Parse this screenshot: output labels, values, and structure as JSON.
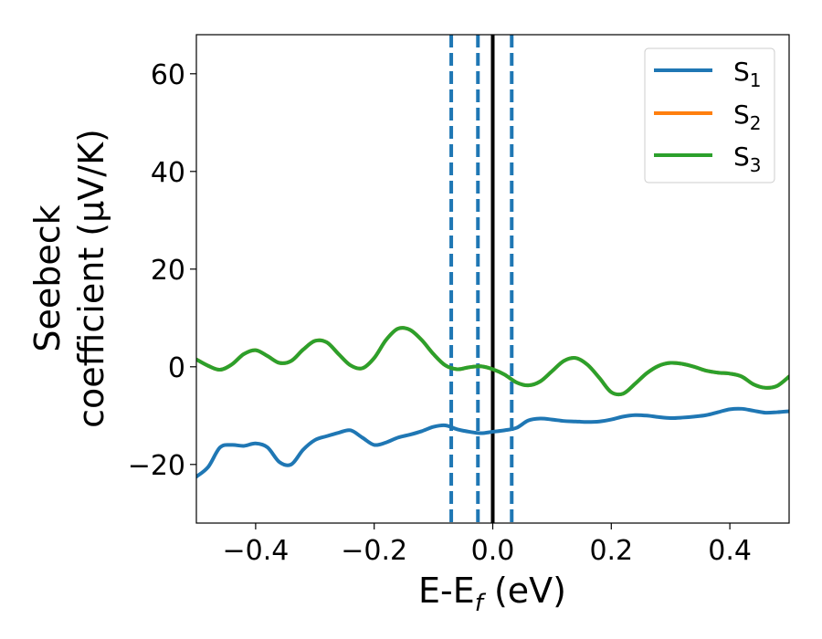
{
  "chart_data": {
    "type": "line",
    "xlabel": "E-E",
    "xlabel_sub": "f",
    "xlabel_unit": " (eV)",
    "ylabel_line1": "Seebeck",
    "ylabel_line2": "coefficient  (μV/K)",
    "xlim": [
      -0.5,
      0.5
    ],
    "ylim": [
      -32,
      68
    ],
    "xticks": [
      -0.4,
      -0.2,
      0.0,
      0.2,
      0.4
    ],
    "xtick_labels": [
      "−0.4",
      "−0.2",
      "0.0",
      "0.2",
      "0.4"
    ],
    "yticks": [
      -20,
      0,
      20,
      40,
      60
    ],
    "ytick_labels": [
      "−20",
      "0",
      "20",
      "40",
      "60"
    ],
    "grid": false,
    "legend_position": "top-right",
    "series": [
      {
        "name": "S",
        "name_sub": "1",
        "color": "#1f77b4",
        "x": [
          -0.5,
          -0.48,
          -0.46,
          -0.44,
          -0.42,
          -0.4,
          -0.38,
          -0.36,
          -0.34,
          -0.32,
          -0.3,
          -0.28,
          -0.26,
          -0.24,
          -0.22,
          -0.2,
          -0.18,
          -0.16,
          -0.14,
          -0.12,
          -0.1,
          -0.08,
          -0.06,
          -0.04,
          -0.02,
          0.0,
          0.02,
          0.04,
          0.06,
          0.08,
          0.1,
          0.12,
          0.14,
          0.16,
          0.18,
          0.2,
          0.22,
          0.24,
          0.26,
          0.28,
          0.3,
          0.32,
          0.34,
          0.36,
          0.38,
          0.4,
          0.42,
          0.44,
          0.46,
          0.48,
          0.5
        ],
        "y": [
          -22.5,
          -20.5,
          -16.5,
          -16.0,
          -16.2,
          -15.7,
          -16.5,
          -19.5,
          -20.0,
          -17.0,
          -15.0,
          -14.2,
          -13.5,
          -13.0,
          -14.5,
          -16.0,
          -15.5,
          -14.5,
          -13.9,
          -13.2,
          -12.3,
          -12.0,
          -12.8,
          -13.3,
          -13.6,
          -13.3,
          -13.0,
          -12.5,
          -11.0,
          -10.6,
          -10.8,
          -11.1,
          -11.2,
          -11.3,
          -11.2,
          -10.8,
          -10.2,
          -9.9,
          -10.0,
          -10.3,
          -10.5,
          -10.4,
          -10.2,
          -9.9,
          -9.3,
          -8.7,
          -8.6,
          -9.0,
          -9.4,
          -9.3,
          -9.1
        ]
      },
      {
        "name": "S",
        "name_sub": "2",
        "color": "#ff7f0e",
        "x": [
          -0.5,
          -0.48,
          -0.46,
          -0.44,
          -0.42,
          -0.4,
          -0.38,
          -0.36,
          -0.34,
          -0.32,
          -0.3,
          -0.28,
          -0.26,
          -0.24,
          -0.22,
          -0.2,
          -0.18,
          -0.16,
          -0.14,
          -0.12,
          -0.1,
          -0.08,
          -0.06,
          -0.04,
          -0.02,
          0.0,
          0.02,
          0.04,
          0.06,
          0.08,
          0.1,
          0.12,
          0.14,
          0.16,
          0.18,
          0.2,
          0.22,
          0.24,
          0.26,
          0.28,
          0.3,
          0.32,
          0.34,
          0.36,
          0.38,
          0.4,
          0.42,
          0.44,
          0.46,
          0.48,
          0.5
        ],
        "y": [
          1.5,
          0.2,
          -0.6,
          0.5,
          2.6,
          3.4,
          2.2,
          0.8,
          1.2,
          3.5,
          5.3,
          5.0,
          2.6,
          0.3,
          -0.3,
          1.8,
          5.5,
          7.8,
          7.6,
          5.5,
          2.6,
          0.3,
          -0.5,
          -0.1,
          0.1,
          -0.5,
          -1.6,
          -3.2,
          -3.8,
          -3.0,
          -0.9,
          1.2,
          1.8,
          0.4,
          -2.3,
          -5.2,
          -5.5,
          -3.5,
          -1.3,
          0.2,
          0.8,
          0.6,
          0.0,
          -0.8,
          -1.2,
          -1.4,
          -2.0,
          -3.6,
          -4.3,
          -3.9,
          -2.0
        ]
      },
      {
        "name": "S",
        "name_sub": "3",
        "color": "#2ca02c",
        "x": [
          -0.5,
          -0.48,
          -0.46,
          -0.44,
          -0.42,
          -0.4,
          -0.38,
          -0.36,
          -0.34,
          -0.32,
          -0.3,
          -0.28,
          -0.26,
          -0.24,
          -0.22,
          -0.2,
          -0.18,
          -0.16,
          -0.14,
          -0.12,
          -0.1,
          -0.08,
          -0.06,
          -0.04,
          -0.02,
          0.0,
          0.02,
          0.04,
          0.06,
          0.08,
          0.1,
          0.12,
          0.14,
          0.16,
          0.18,
          0.2,
          0.22,
          0.24,
          0.26,
          0.28,
          0.3,
          0.32,
          0.34,
          0.36,
          0.38,
          0.4,
          0.42,
          0.44,
          0.46,
          0.48,
          0.5
        ],
        "y": [
          1.5,
          0.2,
          -0.6,
          0.5,
          2.6,
          3.4,
          2.2,
          0.8,
          1.2,
          3.5,
          5.3,
          5.0,
          2.6,
          0.3,
          -0.3,
          1.8,
          5.5,
          7.8,
          7.6,
          5.5,
          2.6,
          0.3,
          -0.5,
          -0.1,
          0.1,
          -0.5,
          -1.6,
          -3.2,
          -3.8,
          -3.0,
          -0.9,
          1.2,
          1.8,
          0.4,
          -2.3,
          -5.2,
          -5.5,
          -3.5,
          -1.3,
          0.2,
          0.8,
          0.6,
          0.0,
          -0.8,
          -1.2,
          -1.4,
          -2.0,
          -3.6,
          -4.3,
          -3.9,
          -2.0
        ]
      }
    ],
    "vlines": [
      {
        "x": -0.07,
        "style": "dashed",
        "color": "#1f77b4"
      },
      {
        "x": -0.025,
        "style": "dashed",
        "color": "#1f77b4"
      },
      {
        "x": 0.0,
        "style": "solid",
        "color": "#000000"
      },
      {
        "x": 0.032,
        "style": "dashed",
        "color": "#1f77b4"
      }
    ]
  }
}
